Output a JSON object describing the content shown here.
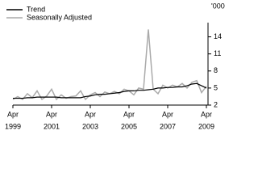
{
  "chart_data": {
    "type": "line",
    "y_unit": "'000",
    "x": [
      "1999-04",
      "1999-07",
      "1999-10",
      "2000-01",
      "2000-04",
      "2000-07",
      "2000-10",
      "2001-01",
      "2001-04",
      "2001-07",
      "2001-10",
      "2002-01",
      "2002-04",
      "2002-07",
      "2002-10",
      "2003-01",
      "2003-04",
      "2003-07",
      "2003-10",
      "2004-01",
      "2004-04",
      "2004-07",
      "2004-10",
      "2005-01",
      "2005-04",
      "2005-07",
      "2005-10",
      "2006-01",
      "2006-04",
      "2006-07",
      "2006-10",
      "2007-01",
      "2007-04",
      "2007-07",
      "2007-10",
      "2008-01",
      "2008-04",
      "2008-07",
      "2008-10",
      "2009-01",
      "2009-04"
    ],
    "series": [
      {
        "name": "Trend",
        "color": "#000000",
        "values": [
          3.2,
          3.2,
          3.2,
          3.3,
          3.3,
          3.4,
          3.4,
          3.4,
          3.4,
          3.4,
          3.3,
          3.3,
          3.3,
          3.3,
          3.3,
          3.5,
          3.6,
          3.8,
          3.9,
          3.9,
          4.0,
          4.1,
          4.2,
          4.4,
          4.5,
          4.5,
          4.6,
          4.6,
          4.7,
          4.8,
          5.0,
          5.0,
          5.1,
          5.1,
          5.2,
          5.2,
          5.4,
          5.7,
          5.8,
          5.4,
          5.0
        ]
      },
      {
        "name": "Seasonally Adjusted",
        "color": "#aaaaaa",
        "values": [
          3.0,
          3.5,
          3.0,
          4.0,
          3.3,
          4.5,
          3.0,
          3.6,
          4.8,
          3.0,
          3.8,
          3.2,
          3.5,
          3.6,
          4.5,
          3.0,
          3.8,
          4.2,
          3.5,
          4.3,
          4.0,
          4.4,
          4.0,
          4.8,
          4.5,
          3.8,
          5.0,
          4.8,
          15.3,
          4.8,
          4.0,
          5.5,
          5.0,
          5.5,
          5.2,
          5.8,
          5.0,
          6.0,
          6.3,
          4.2,
          5.3
        ]
      }
    ],
    "xlim": [
      "1999-04",
      "2009-04"
    ],
    "xticks": [
      {
        "value": "1999-04",
        "label": [
          "Apr",
          "1999"
        ]
      },
      {
        "value": "2001-04",
        "label": [
          "Apr",
          "2001"
        ]
      },
      {
        "value": "2003-04",
        "label": [
          "Apr",
          "2003"
        ]
      },
      {
        "value": "2005-04",
        "label": [
          "Apr",
          "2005"
        ]
      },
      {
        "value": "2007-04",
        "label": [
          "Apr",
          "2007"
        ]
      },
      {
        "value": "2009-04",
        "label": [
          "Apr",
          "2009"
        ]
      }
    ],
    "ylim": [
      2,
      16.5
    ],
    "yticks": [
      2,
      5,
      8,
      11,
      14
    ],
    "legend": "top-left"
  }
}
